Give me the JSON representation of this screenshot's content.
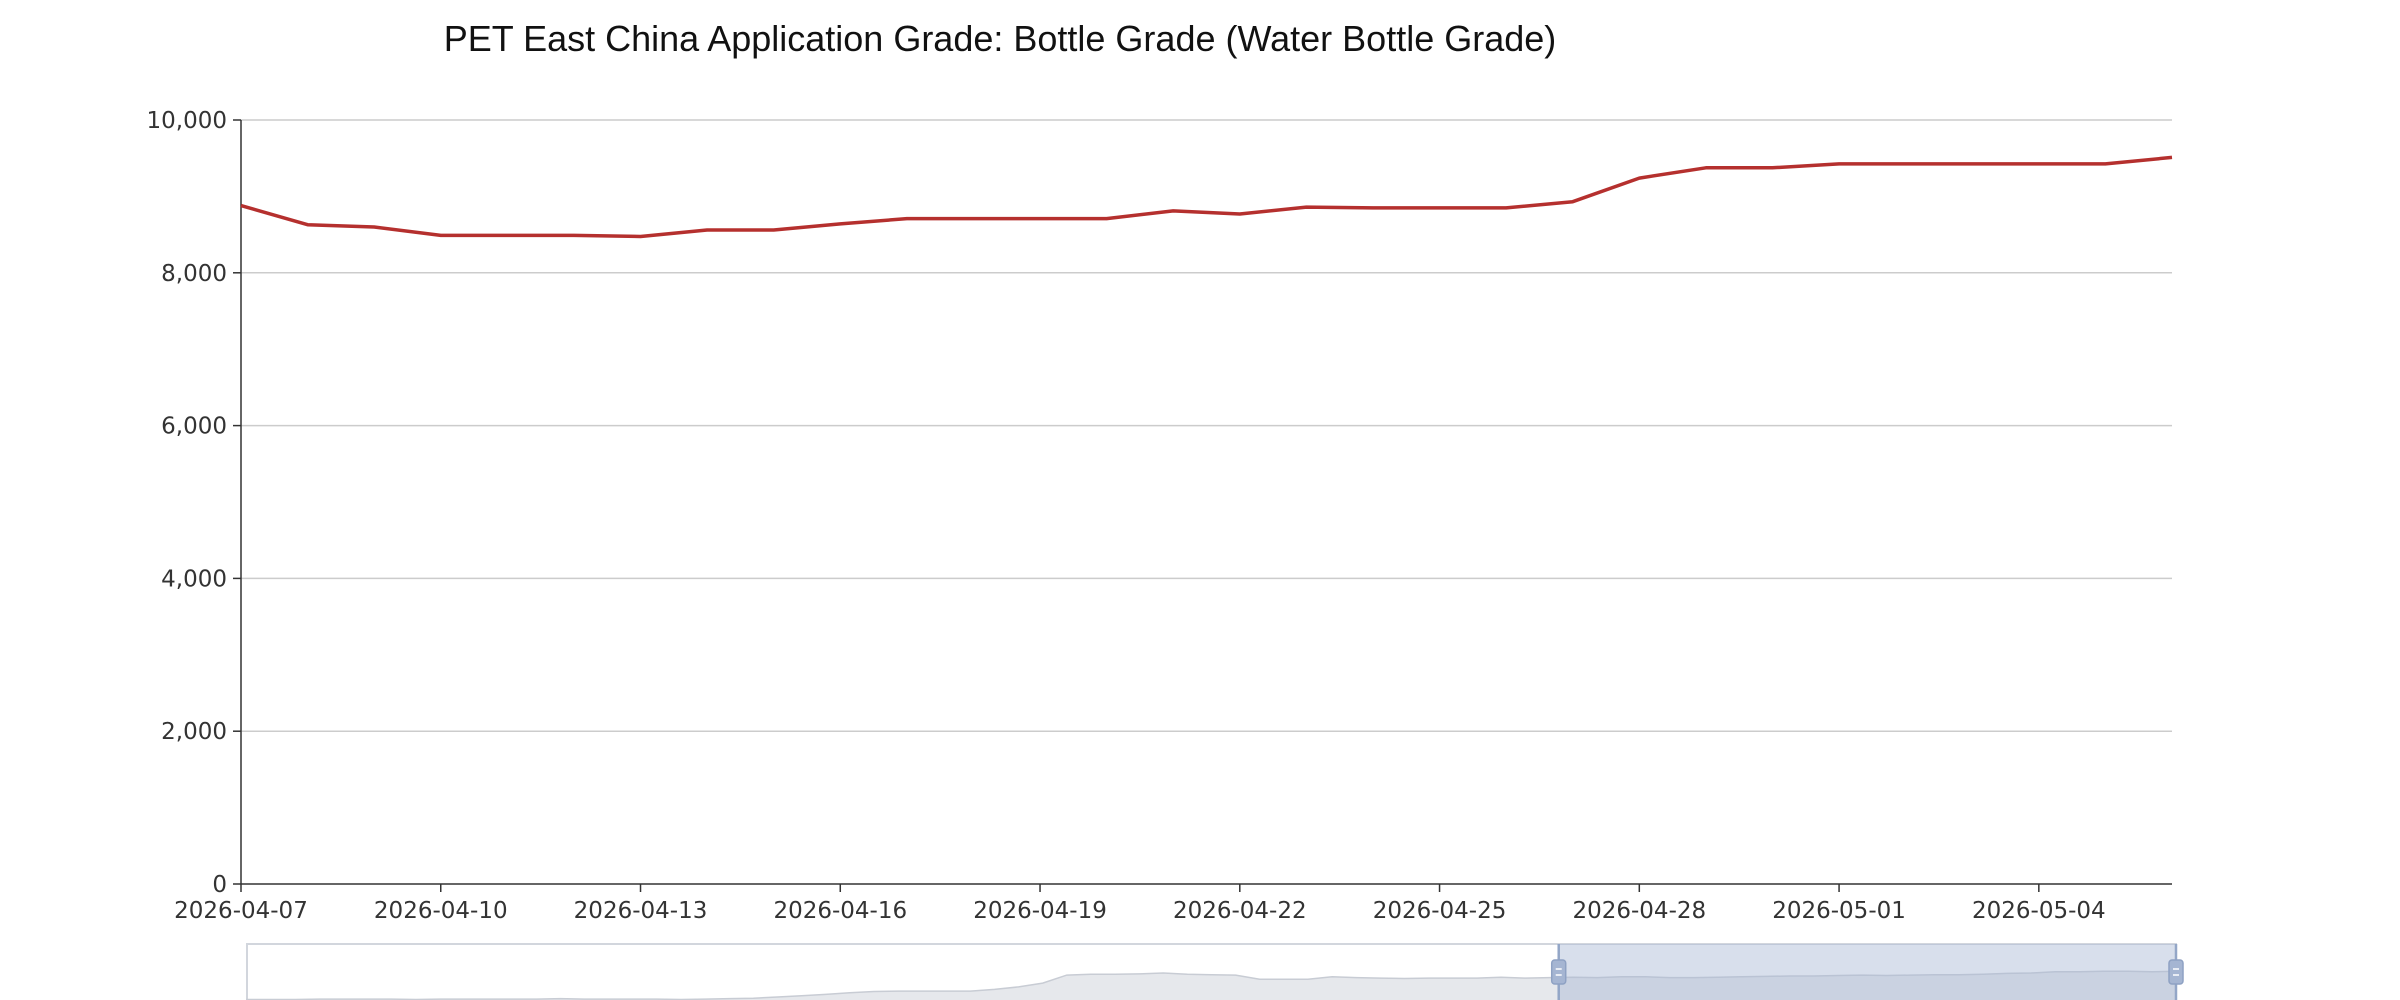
{
  "chart_data": {
    "type": "line",
    "title": "PET East China Application Grade: Bottle Grade (Water Bottle Grade)",
    "xlabel": "",
    "ylabel": "",
    "x": [
      "2026-04-07",
      "2026-04-08",
      "2026-04-09",
      "2026-04-10",
      "2026-04-11",
      "2026-04-12",
      "2026-04-13",
      "2026-04-14",
      "2026-04-15",
      "2026-04-16",
      "2026-04-17",
      "2026-04-18",
      "2026-04-19",
      "2026-04-20",
      "2026-04-21",
      "2026-04-22",
      "2026-04-23",
      "2026-04-24",
      "2026-04-25",
      "2026-04-26",
      "2026-04-27",
      "2026-04-28",
      "2026-04-29",
      "2026-04-30",
      "2026-05-01",
      "2026-05-02",
      "2026-05-03",
      "2026-05-04",
      "2026-05-05",
      "2026-05-06"
    ],
    "series": [
      {
        "color": "#b5302e",
        "values": [
          8880,
          8630,
          8600,
          8490,
          8490,
          8490,
          8475,
          8560,
          8560,
          8640,
          8710,
          8710,
          8710,
          8710,
          8810,
          8770,
          8860,
          8850,
          8850,
          8850,
          8930,
          9240,
          9375,
          9375,
          9425,
          9425,
          9425,
          9425,
          9425,
          9510
        ]
      }
    ],
    "ylim": [
      0,
      10000
    ],
    "y_ticks": [
      "0",
      "2,000",
      "4,000",
      "6,000",
      "8,000",
      "10,000"
    ],
    "x_ticks": [
      "2026-04-07",
      "2026-04-10",
      "2026-04-13",
      "2026-04-16",
      "2026-04-19",
      "2026-04-22",
      "2026-04-25",
      "2026-04-28",
      "2026-05-01",
      "2026-05-04"
    ],
    "grid": "horizontal",
    "legend": "none",
    "data_zoom": {
      "selected_range": [
        0.68,
        1.0
      ],
      "overview_values": [
        6,
        6,
        6,
        7,
        7,
        7,
        7,
        6,
        7,
        7,
        7,
        7,
        7,
        8,
        7,
        7,
        7,
        7,
        6,
        7,
        8,
        9,
        12,
        15,
        18,
        22,
        25,
        26,
        26,
        26,
        26,
        30,
        36,
        45,
        64,
        66,
        66,
        67,
        69,
        66,
        65,
        64,
        54,
        54,
        54,
        60,
        58,
        57,
        56,
        57,
        57,
        57,
        59,
        57,
        58,
        59,
        58,
        60,
        60,
        58,
        58,
        59,
        60,
        61,
        62,
        62,
        63,
        64,
        63,
        64,
        65,
        65,
        66,
        68,
        69,
        72,
        72,
        73,
        73,
        72,
        73
      ]
    }
  }
}
